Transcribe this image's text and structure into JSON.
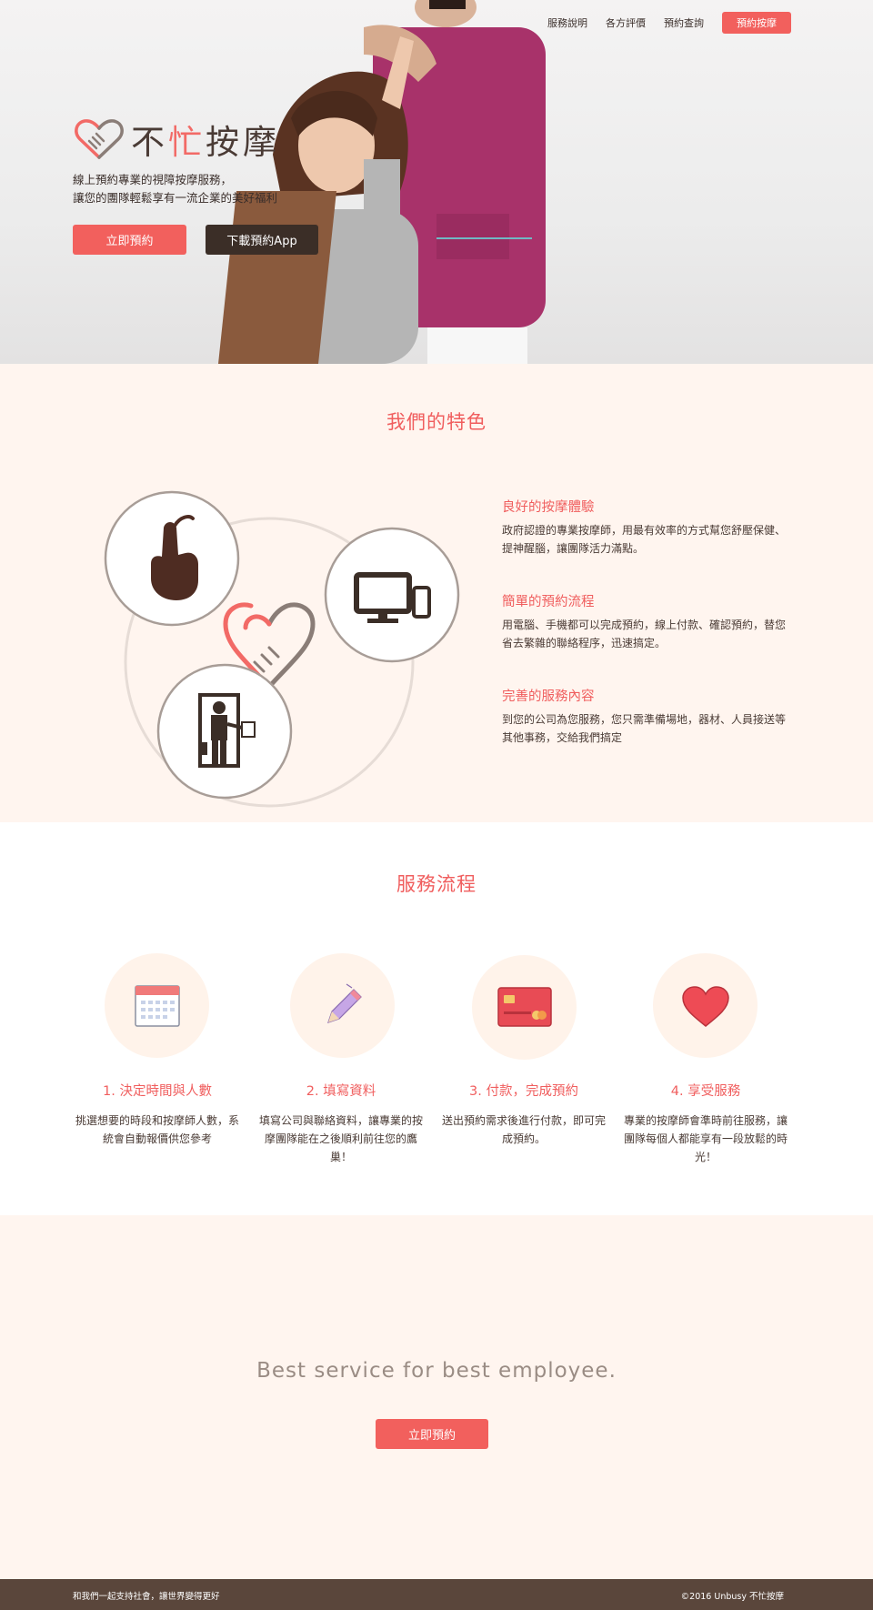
{
  "nav": {
    "items": [
      "服務說明",
      "各方評價",
      "預約查詢"
    ],
    "cta": "預約按摩"
  },
  "hero": {
    "brand_plain_1": "不",
    "brand_accent": "忙",
    "brand_plain_2": "按摩",
    "tagline_line1": "線上預約專業的視障按摩服務，",
    "tagline_line2": "讓您的團隊輕鬆享有一流企業的美好福利",
    "primary_button": "立即預約",
    "secondary_button": "下載預約App"
  },
  "features": {
    "title": "我們的特色",
    "items": [
      {
        "title": "良好的按摩體驗",
        "desc": "政府認證的專業按摩師，用最有效率的方式幫您舒壓保健、提神醒腦，讓團隊活力滿點。"
      },
      {
        "title": "簡單的預約流程",
        "desc": "用電腦、手機都可以完成預約，線上付款、確認預約，替您省去繁雜的聯絡程序，迅速搞定。"
      },
      {
        "title": "完善的服務內容",
        "desc": "到您的公司為您服務，您只需準備場地，器材、人員接送等其他事務，交給我們搞定"
      }
    ]
  },
  "process": {
    "title": "服務流程",
    "steps": [
      {
        "title": "1. 決定時間與人數",
        "desc": "挑選想要的時段和按摩師人數，系統會自動報價供您參考",
        "icon": "calendar-icon"
      },
      {
        "title": "2. 填寫資料",
        "desc": "填寫公司與聯絡資料，讓專業的按摩團隊能在之後順利前往您的鷹巢！",
        "icon": "pencil-icon"
      },
      {
        "title": "3. 付款，完成預約",
        "desc": "送出預約需求後進行付款，即可完成預約。",
        "icon": "credit-card-icon"
      },
      {
        "title": "4. 享受服務",
        "desc": "專業的按摩師會準時前往服務，讓團隊每個人都能享有一段放鬆的時光！",
        "icon": "heart-icon"
      }
    ]
  },
  "cta": {
    "text": "Best service for best employee.",
    "button": "立即預約"
  },
  "footer": {
    "left": "和我們一起支持社會，讓世界變得更好",
    "right": "©2016 Unbusy 不忙按摩"
  },
  "colors": {
    "accent": "#f2605d",
    "dark_brown": "#3b2e27",
    "cream": "#fff5ef",
    "footer": "#5a463b"
  }
}
